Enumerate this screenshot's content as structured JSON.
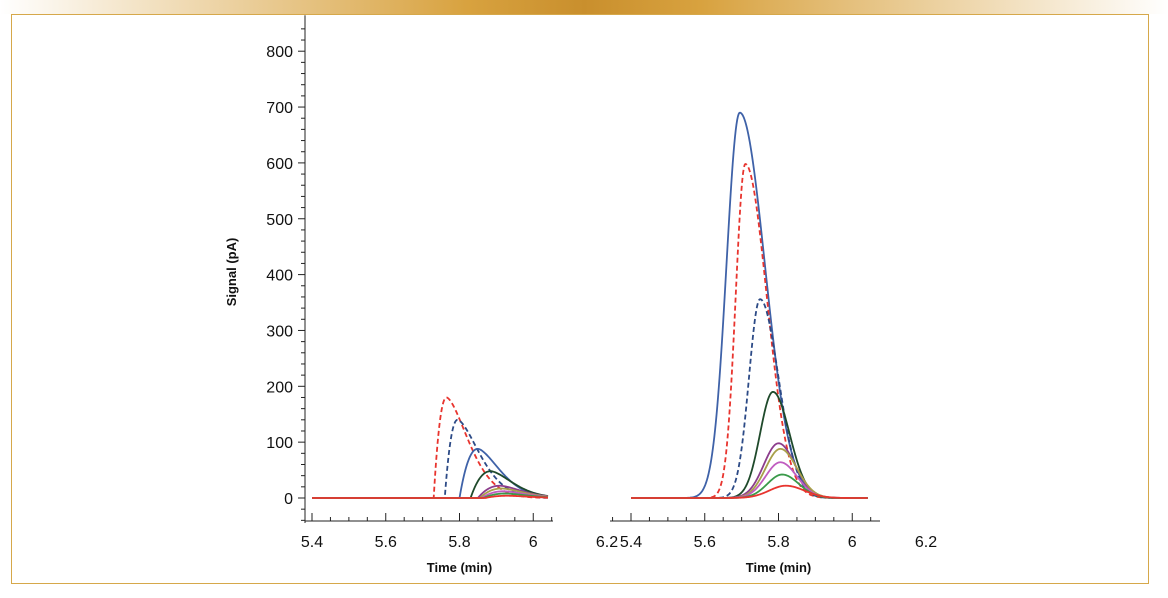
{
  "chart_data": [
    {
      "type": "line",
      "title": "",
      "xlabel": "Time (min)",
      "ylabel": "Signal (pA)",
      "xlim": [
        5.4,
        6.25
      ],
      "ylim": [
        -50,
        850
      ],
      "xticks": [
        5.4,
        5.6,
        5.8,
        6,
        6.2
      ],
      "yticks": [
        0,
        100,
        200,
        300,
        400,
        500,
        600,
        700,
        800
      ],
      "grid": false,
      "series": [
        {
          "color": "#e8342e",
          "style": "dashed",
          "peak_time": 5.765,
          "peak_height": 180,
          "onset_time": 5.73
        },
        {
          "color": "#2c4a86",
          "style": "dashed",
          "peak_time": 5.795,
          "peak_height": 140,
          "onset_time": 5.76
        },
        {
          "color": "#3f62a8",
          "style": "solid",
          "peak_time": 5.85,
          "peak_height": 88,
          "onset_time": 5.8
        },
        {
          "color": "#1f4a2b",
          "style": "solid",
          "peak_time": 5.885,
          "peak_height": 48,
          "onset_time": 5.83
        },
        {
          "color": "#8c3d8c",
          "style": "solid",
          "peak_time": 5.91,
          "peak_height": 22,
          "onset_time": 5.85
        },
        {
          "color": "#a8a04a",
          "style": "solid",
          "peak_time": 5.915,
          "peak_height": 17,
          "onset_time": 5.855
        },
        {
          "color": "#c05cc0",
          "style": "solid",
          "peak_time": 5.92,
          "peak_height": 12,
          "onset_time": 5.86
        },
        {
          "color": "#3a9a4a",
          "style": "solid",
          "peak_time": 5.925,
          "peak_height": 8,
          "onset_time": 5.865
        },
        {
          "color": "#e8342e",
          "style": "solid",
          "peak_time": 5.93,
          "peak_height": 4,
          "onset_time": 5.87
        }
      ]
    },
    {
      "type": "line",
      "title": "",
      "xlabel": "Time (min)",
      "ylabel": "",
      "xlim": [
        5.4,
        6.25
      ],
      "ylim": [
        -50,
        850
      ],
      "xticks": [
        5.4,
        5.6,
        5.8,
        6,
        6.2
      ],
      "yticks": [],
      "grid": false,
      "series": [
        {
          "color": "#3f62a8",
          "style": "solid",
          "peak_time": 5.695,
          "peak_height": 690,
          "sigma_left": 0.036,
          "sigma_right": 0.068
        },
        {
          "color": "#e8342e",
          "style": "dashed",
          "peak_time": 5.71,
          "peak_height": 598,
          "sigma_left": 0.026,
          "sigma_right": 0.058
        },
        {
          "color": "#2c4a86",
          "style": "dashed",
          "peak_time": 5.75,
          "peak_height": 356,
          "sigma_left": 0.03,
          "sigma_right": 0.05
        },
        {
          "color": "#1f4a2b",
          "style": "solid",
          "peak_time": 5.785,
          "peak_height": 190,
          "sigma_left": 0.035,
          "sigma_right": 0.045
        },
        {
          "color": "#8c3d8c",
          "style": "solid",
          "peak_time": 5.8,
          "peak_height": 98,
          "sigma_left": 0.04,
          "sigma_right": 0.045
        },
        {
          "color": "#a8a04a",
          "style": "solid",
          "peak_time": 5.805,
          "peak_height": 88,
          "sigma_left": 0.04,
          "sigma_right": 0.045
        },
        {
          "color": "#c05cc0",
          "style": "solid",
          "peak_time": 5.805,
          "peak_height": 64,
          "sigma_left": 0.04,
          "sigma_right": 0.045
        },
        {
          "color": "#3a9a4a",
          "style": "solid",
          "peak_time": 5.81,
          "peak_height": 42,
          "sigma_left": 0.04,
          "sigma_right": 0.045
        },
        {
          "color": "#e8342e",
          "style": "solid",
          "peak_time": 5.82,
          "peak_height": 22,
          "sigma_left": 0.045,
          "sigma_right": 0.05
        }
      ]
    }
  ]
}
